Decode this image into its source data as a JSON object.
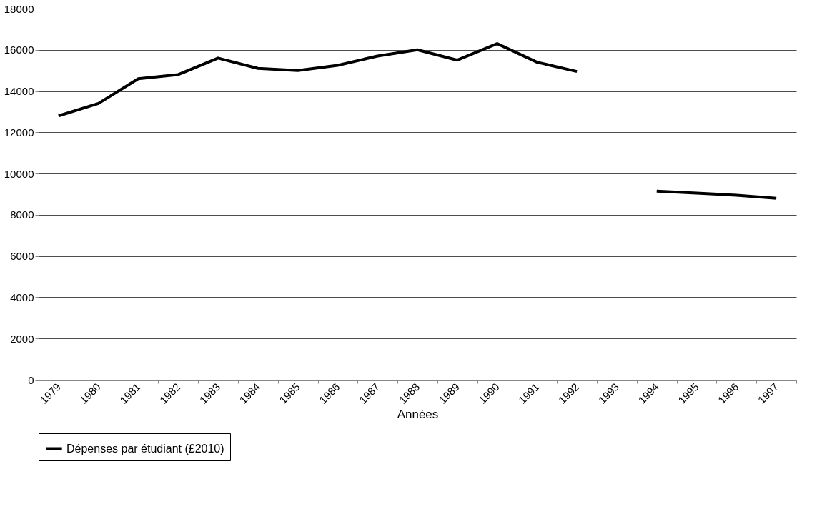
{
  "chart_data": {
    "type": "line",
    "xlabel": "Années",
    "categories": [
      "1979",
      "1980",
      "1981",
      "1982",
      "1983",
      "1984",
      "1985",
      "1986",
      "1987",
      "1988",
      "1989",
      "1990",
      "1991",
      "1992",
      "1993",
      "1994",
      "1995",
      "1996",
      "1997"
    ],
    "series": [
      {
        "name": "Dépenses par étudiant (£2010)",
        "color": "#000000",
        "values": [
          12800,
          13400,
          14600,
          14800,
          15600,
          15100,
          15000,
          15250,
          15700,
          16000,
          15500,
          16300,
          15400,
          14950,
          null,
          9150,
          9050,
          8950,
          8800
        ]
      }
    ],
    "ylim": [
      0,
      18000
    ],
    "yticks": [
      0,
      2000,
      4000,
      6000,
      8000,
      10000,
      12000,
      14000,
      16000,
      18000
    ],
    "grid": "y",
    "legend": "bottom",
    "marker": "none",
    "line_style": "solid"
  }
}
